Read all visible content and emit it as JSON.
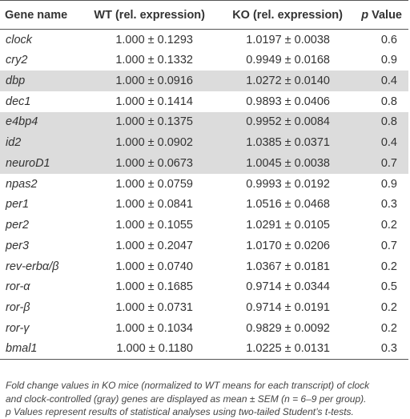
{
  "table": {
    "headers": {
      "gene": "Gene name",
      "wt": "WT (rel. expression)",
      "ko": "KO (rel. expression)",
      "p_letter": "p",
      "p_rest": " Value"
    },
    "rows": [
      {
        "gene": "clock",
        "wt": "1.000 ± 0.1293",
        "ko": "1.0197 ± 0.0038",
        "p": "0.6",
        "gray": false
      },
      {
        "gene": "cry2",
        "wt": "1.000 ± 0.1332",
        "ko": "0.9949 ± 0.0168",
        "p": "0.9",
        "gray": false
      },
      {
        "gene": "dbp",
        "wt": "1.000 ± 0.0916",
        "ko": "1.0272 ± 0.0140",
        "p": "0.4",
        "gray": true
      },
      {
        "gene": "dec1",
        "wt": "1.000 ± 0.1414",
        "ko": "0.9893 ± 0.0406",
        "p": "0.8",
        "gray": false
      },
      {
        "gene": "e4bp4",
        "wt": "1.000 ± 0.1375",
        "ko": "0.9952 ± 0.0084",
        "p": "0.8",
        "gray": true
      },
      {
        "gene": "id2",
        "wt": "1.000 ± 0.0902",
        "ko": "1.0385 ± 0.0371",
        "p": "0.4",
        "gray": true
      },
      {
        "gene": "neuroD1",
        "wt": "1.000 ± 0.0673",
        "ko": "1.0045 ± 0.0038",
        "p": "0.7",
        "gray": true
      },
      {
        "gene": "npas2",
        "wt": "1.000 ± 0.0759",
        "ko": "0.9993 ± 0.0192",
        "p": "0.9",
        "gray": false
      },
      {
        "gene": "per1",
        "wt": "1.000 ± 0.0841",
        "ko": "1.0516 ± 0.0468",
        "p": "0.3",
        "gray": false
      },
      {
        "gene": "per2",
        "wt": "1.000 ± 0.1055",
        "ko": "1.0291 ± 0.0105",
        "p": "0.2",
        "gray": false
      },
      {
        "gene": "per3",
        "wt": "1.000 ± 0.2047",
        "ko": "1.0170 ± 0.0206",
        "p": "0.7",
        "gray": false
      },
      {
        "gene": "rev-erbα/β",
        "wt": "1.000 ± 0.0740",
        "ko": "1.0367 ± 0.0181",
        "p": "0.2",
        "gray": false
      },
      {
        "gene": "ror-α",
        "wt": "1.000 ± 0.1685",
        "ko": "0.9714 ± 0.0344",
        "p": "0.5",
        "gray": false
      },
      {
        "gene": "ror-β",
        "wt": "1.000 ± 0.0731",
        "ko": "0.9714 ± 0.0191",
        "p": "0.2",
        "gray": false
      },
      {
        "gene": "ror-γ",
        "wt": "1.000 ± 0.1034",
        "ko": "0.9829 ± 0.0092",
        "p": "0.2",
        "gray": false
      },
      {
        "gene": "bmal1",
        "wt": "1.000 ± 0.1180",
        "ko": "1.0225 ± 0.0131",
        "p": "0.3",
        "gray": false
      }
    ]
  },
  "caption": {
    "line1": "Fold change values in KO mice (normalized to WT means for each transcript) of clock",
    "line2": "and clock-controlled (gray) genes are displayed as mean ± SEM (n = 6–9 per group).",
    "line3": "p Values represent results of statistical analyses using two-tailed Student’s t-tests."
  },
  "colors": {
    "highlight_gray": "#dcdcdc",
    "text": "#333333",
    "rule": "#555555"
  }
}
